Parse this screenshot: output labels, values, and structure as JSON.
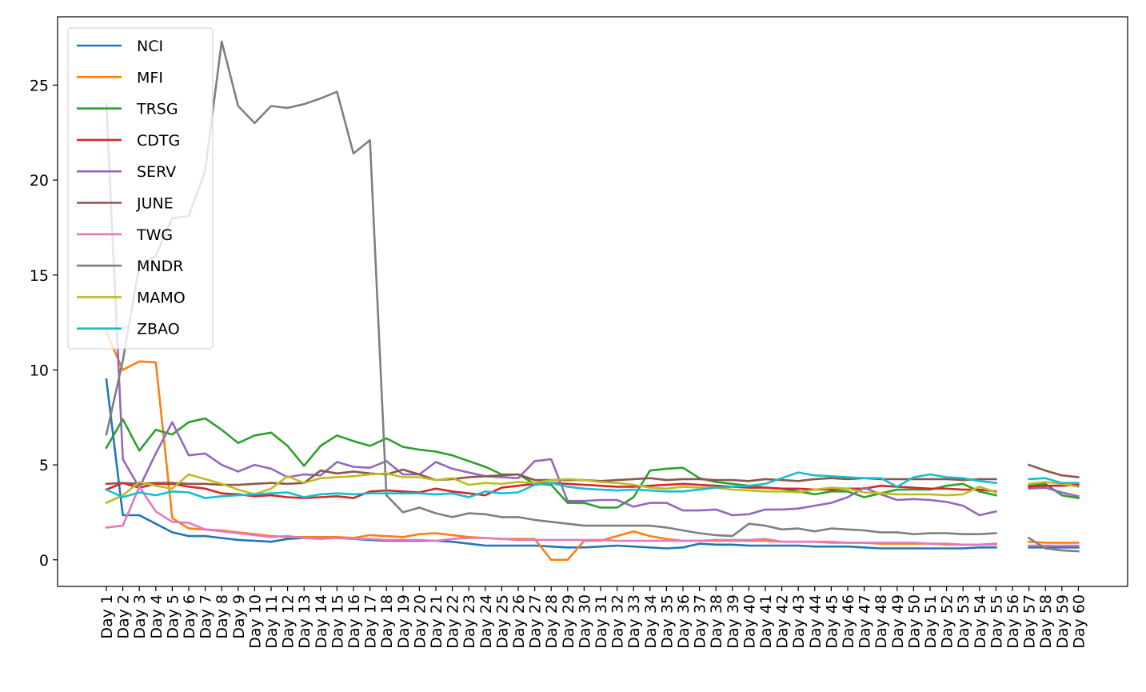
{
  "chart_data": {
    "type": "line",
    "title": "",
    "xlabel": "",
    "ylabel": "",
    "ylim": [
      -1.4,
      28.6
    ],
    "yticks": [
      0,
      5,
      10,
      15,
      20,
      25
    ],
    "grid": false,
    "legend_position": "upper-left",
    "categories": [
      "Day 1",
      "Day 2",
      "Day 3",
      "Day 4",
      "Day 5",
      "Day 6",
      "Day 7",
      "Day 8",
      "Day 9",
      "Day 10",
      "Day 11",
      "Day 12",
      "Day 13",
      "Day 14",
      "Day 15",
      "Day 16",
      "Day 17",
      "Day 18",
      "Day 19",
      "Day 20",
      "Day 21",
      "Day 22",
      "Day 23",
      "Day 24",
      "Day 25",
      "Day 26",
      "Day 27",
      "Day 28",
      "Day 29",
      "Day 30",
      "Day 31",
      "Day 32",
      "Day 33",
      "Day 34",
      "Day 35",
      "Day 36",
      "Day 37",
      "Day 38",
      "Day 39",
      "Day 40",
      "Day 41",
      "Day 42",
      "Day 43",
      "Day 44",
      "Day 45",
      "Day 46",
      "Day 47",
      "Day 48",
      "Day 49",
      "Day 50",
      "Day 51",
      "Day 52",
      "Day 53",
      "Day 54",
      "Day 55",
      "Day 56",
      "Day 57",
      "Day 58",
      "Day 59",
      "Day 60"
    ],
    "series": [
      {
        "name": "NCI",
        "color": "#1f77b4",
        "values": [
          9.5,
          2.35,
          2.35,
          1.9,
          1.45,
          1.25,
          1.25,
          1.15,
          1.05,
          1.0,
          0.95,
          1.1,
          1.15,
          1.15,
          1.15,
          1.1,
          1.05,
          1.0,
          1.0,
          1.0,
          1.0,
          0.95,
          0.85,
          0.75,
          0.75,
          0.75,
          0.75,
          0.7,
          0.65,
          0.65,
          0.7,
          0.75,
          0.7,
          0.65,
          0.6,
          0.65,
          0.85,
          0.8,
          0.8,
          0.75,
          0.75,
          0.75,
          0.75,
          0.7,
          0.7,
          0.7,
          0.65,
          0.6,
          0.6,
          0.6,
          0.6,
          0.6,
          0.6,
          0.65,
          0.65,
          null,
          0.65,
          0.65,
          0.65,
          0.65
        ]
      },
      {
        "name": "MFI",
        "color": "#ff7f0e",
        "values": [
          12.0,
          10.0,
          10.45,
          10.4,
          2.2,
          1.65,
          1.6,
          1.55,
          1.45,
          1.35,
          1.25,
          1.2,
          1.2,
          1.2,
          1.2,
          1.15,
          1.3,
          1.25,
          1.2,
          1.35,
          1.4,
          1.3,
          1.2,
          1.15,
          1.1,
          1.1,
          1.1,
          0.0,
          0.0,
          1.0,
          1.0,
          1.25,
          1.5,
          1.25,
          1.1,
          1.0,
          1.0,
          1.0,
          1.0,
          1.0,
          1.0,
          0.95,
          0.95,
          0.95,
          0.9,
          0.9,
          0.9,
          0.85,
          0.85,
          0.85,
          0.85,
          0.8,
          0.8,
          0.8,
          0.85,
          null,
          0.95,
          0.9,
          0.9,
          0.9
        ]
      },
      {
        "name": "TRSG",
        "color": "#2ca02c",
        "values": [
          5.9,
          7.4,
          5.75,
          6.85,
          6.6,
          7.25,
          7.45,
          6.85,
          6.15,
          6.55,
          6.7,
          6.0,
          4.95,
          6.0,
          6.55,
          6.25,
          6.0,
          6.4,
          5.95,
          5.8,
          5.7,
          5.5,
          5.2,
          4.9,
          4.5,
          4.5,
          4.0,
          3.95,
          3.0,
          3.0,
          2.75,
          2.75,
          3.3,
          4.7,
          4.8,
          4.85,
          4.3,
          4.1,
          4.0,
          3.9,
          3.8,
          3.75,
          3.6,
          3.45,
          3.6,
          3.6,
          3.3,
          3.5,
          3.7,
          3.7,
          3.7,
          3.9,
          4.0,
          3.6,
          3.4,
          null,
          3.9,
          4.0,
          3.4,
          3.25
        ]
      },
      {
        "name": "CDTG",
        "color": "#d62728",
        "values": [
          3.7,
          4.05,
          3.8,
          4.0,
          4.0,
          3.85,
          3.75,
          3.5,
          3.45,
          3.35,
          3.4,
          3.3,
          3.25,
          3.3,
          3.35,
          3.25,
          3.6,
          3.65,
          3.6,
          3.55,
          3.75,
          3.6,
          3.5,
          3.4,
          3.8,
          3.9,
          4.0,
          4.05,
          4.0,
          3.95,
          3.9,
          3.85,
          3.85,
          3.9,
          3.95,
          4.0,
          3.95,
          3.9,
          3.85,
          3.8,
          3.8,
          3.75,
          3.75,
          3.7,
          3.7,
          3.75,
          3.75,
          3.9,
          3.85,
          3.8,
          3.75,
          3.75,
          3.7,
          3.7,
          3.6,
          null,
          3.85,
          3.9,
          3.9,
          3.95
        ]
      },
      {
        "name": "SERV",
        "color": "#9467bd",
        "values": [
          24.0,
          5.3,
          3.8,
          5.6,
          7.25,
          5.5,
          5.6,
          5.0,
          4.65,
          5.0,
          4.8,
          4.35,
          4.5,
          4.45,
          5.15,
          4.9,
          4.85,
          5.2,
          4.5,
          4.5,
          5.15,
          4.8,
          4.6,
          4.4,
          4.35,
          4.3,
          5.2,
          5.3,
          3.1,
          3.1,
          3.15,
          3.15,
          2.8,
          3.0,
          3.0,
          2.6,
          2.6,
          2.65,
          2.35,
          2.4,
          2.65,
          2.65,
          2.7,
          2.85,
          3.0,
          3.3,
          3.8,
          3.45,
          3.15,
          3.2,
          3.15,
          3.05,
          2.85,
          2.35,
          2.55,
          null,
          3.75,
          3.8,
          3.55,
          3.35
        ]
      },
      {
        "name": "JUNE",
        "color": "#8c564b",
        "values": [
          4.0,
          4.05,
          4.0,
          4.05,
          4.05,
          4.0,
          4.0,
          3.95,
          3.95,
          4.0,
          4.05,
          4.0,
          4.05,
          4.7,
          4.55,
          4.65,
          4.55,
          4.5,
          4.75,
          4.5,
          4.2,
          4.25,
          4.35,
          4.4,
          4.45,
          4.5,
          4.2,
          4.2,
          4.2,
          4.2,
          4.15,
          4.2,
          4.25,
          4.3,
          4.2,
          4.25,
          4.25,
          4.2,
          4.2,
          4.15,
          4.25,
          4.2,
          4.15,
          4.25,
          4.3,
          4.25,
          4.3,
          4.25,
          4.25,
          4.25,
          4.25,
          4.25,
          4.2,
          4.25,
          4.25,
          null,
          5.0,
          4.7,
          4.45,
          4.35
        ]
      },
      {
        "name": "TWG",
        "color": "#e377c2",
        "values": [
          1.7,
          1.8,
          3.85,
          2.55,
          2.0,
          1.95,
          1.6,
          1.5,
          1.4,
          1.3,
          1.2,
          1.25,
          1.15,
          1.1,
          1.15,
          1.1,
          1.1,
          1.05,
          1.05,
          1.05,
          1.0,
          1.1,
          1.15,
          1.15,
          1.1,
          1.05,
          1.05,
          1.05,
          1.05,
          1.05,
          1.05,
          1.0,
          1.0,
          1.0,
          1.0,
          1.0,
          1.0,
          1.05,
          1.05,
          1.05,
          1.1,
          0.95,
          0.95,
          0.95,
          0.95,
          0.9,
          0.9,
          0.9,
          0.9,
          0.9,
          0.85,
          0.85,
          0.8,
          0.8,
          0.8,
          null,
          0.75,
          0.75,
          0.75,
          0.75
        ]
      },
      {
        "name": "MNDR",
        "color": "#7f7f7f",
        "values": [
          6.6,
          10.5,
          15.5,
          16.0,
          18.0,
          18.1,
          20.5,
          27.3,
          23.9,
          23.0,
          23.9,
          23.8,
          24.0,
          24.3,
          24.65,
          21.4,
          22.1,
          3.4,
          2.5,
          2.75,
          2.45,
          2.25,
          2.45,
          2.4,
          2.25,
          2.25,
          2.1,
          2.0,
          1.9,
          1.8,
          1.8,
          1.8,
          1.8,
          1.8,
          1.7,
          1.55,
          1.4,
          1.3,
          1.25,
          1.9,
          1.8,
          1.6,
          1.65,
          1.5,
          1.65,
          1.6,
          1.55,
          1.45,
          1.45,
          1.35,
          1.4,
          1.4,
          1.35,
          1.35,
          1.4,
          null,
          1.15,
          0.6,
          0.5,
          0.45
        ]
      },
      {
        "name": "MAMO",
        "color": "#bcbd22",
        "values": [
          3.0,
          3.4,
          4.1,
          3.9,
          3.75,
          4.5,
          4.25,
          4.0,
          3.7,
          3.45,
          3.75,
          4.4,
          4.05,
          4.3,
          4.35,
          4.4,
          4.5,
          4.55,
          4.35,
          4.35,
          4.2,
          4.3,
          3.95,
          4.05,
          4.0,
          4.1,
          4.05,
          4.2,
          4.25,
          4.2,
          4.1,
          4.05,
          3.95,
          3.8,
          3.75,
          3.85,
          3.8,
          3.8,
          3.7,
          3.65,
          3.6,
          3.6,
          3.55,
          3.7,
          3.8,
          3.75,
          3.55,
          3.5,
          3.45,
          3.45,
          3.45,
          3.4,
          3.45,
          3.85,
          3.55,
          null,
          4.0,
          4.1,
          4.0,
          3.85
        ]
      },
      {
        "name": "ZBAO",
        "color": "#17becf",
        "values": [
          3.7,
          3.3,
          3.55,
          3.4,
          3.6,
          3.55,
          3.25,
          3.35,
          3.4,
          3.45,
          3.5,
          3.55,
          3.3,
          3.45,
          3.5,
          3.45,
          3.5,
          3.5,
          3.5,
          3.5,
          3.45,
          3.5,
          3.3,
          3.6,
          3.5,
          3.55,
          3.95,
          4.05,
          3.85,
          3.75,
          3.7,
          3.65,
          3.7,
          3.65,
          3.6,
          3.6,
          3.7,
          3.8,
          3.85,
          3.9,
          4.0,
          4.3,
          4.6,
          4.45,
          4.4,
          4.35,
          4.3,
          4.3,
          3.85,
          4.35,
          4.5,
          4.35,
          4.3,
          4.15,
          4.05,
          null,
          4.25,
          4.3,
          4.05,
          4.05
        ]
      }
    ]
  }
}
